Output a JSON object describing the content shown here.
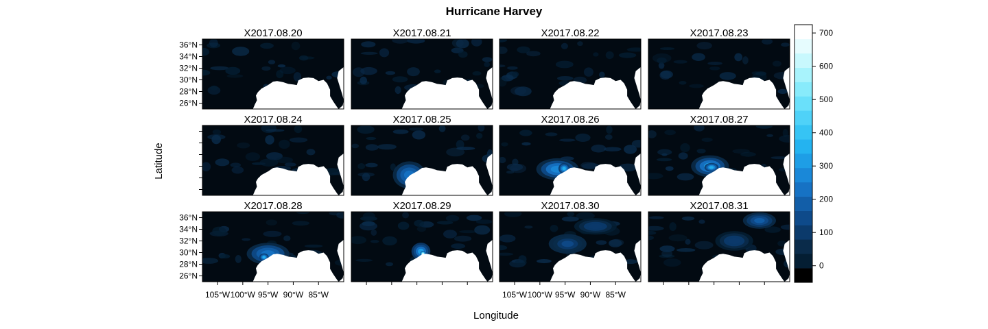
{
  "title": "Hurricane Harvey",
  "xlabel": "Longitude",
  "ylabel": "Latitude",
  "lat_ticks": [
    "36°N",
    "34°N",
    "32°N",
    "30°N",
    "28°N",
    "26°N"
  ],
  "lon_ticks": [
    "105°W",
    "100°W",
    "95°W",
    "90°W",
    "85°W"
  ],
  "panels": [
    {
      "label": "X2017.08.20",
      "storm": []
    },
    {
      "label": "X2017.08.21",
      "storm": []
    },
    {
      "label": "X2017.08.22",
      "storm": []
    },
    {
      "label": "X2017.08.23",
      "storm": []
    },
    {
      "label": "X2017.08.24",
      "storm": []
    },
    {
      "label": "X2017.08.25",
      "storm": [
        [
          -96.5,
          28.5,
          3.5,
          2.5,
          250
        ]
      ]
    },
    {
      "label": "X2017.08.26",
      "storm": [
        [
          -96.5,
          29.5,
          4.5,
          2.0,
          280
        ],
        [
          -95.2,
          29.6,
          1.2,
          1.0,
          360
        ]
      ]
    },
    {
      "label": "X2017.08.27",
      "storm": [
        [
          -95.8,
          30.0,
          4.0,
          2.0,
          300
        ],
        [
          -95.5,
          29.8,
          1.5,
          0.8,
          380
        ]
      ]
    },
    {
      "label": "X2017.08.28",
      "storm": [
        [
          -95.0,
          29.8,
          4.5,
          2.0,
          250
        ],
        [
          -95.8,
          29.2,
          1.0,
          0.7,
          360
        ]
      ]
    },
    {
      "label": "X2017.08.29",
      "storm": [
        [
          -94.2,
          30.2,
          2.0,
          1.6,
          330
        ],
        [
          -93.8,
          29.8,
          0.6,
          0.5,
          640
        ]
      ]
    },
    {
      "label": "X2017.08.30",
      "storm": [
        [
          -94.5,
          31.5,
          4.0,
          1.8,
          150
        ],
        [
          -89.0,
          34.5,
          4.5,
          1.5,
          110
        ]
      ]
    },
    {
      "label": "X2017.08.31",
      "storm": [
        [
          -86.0,
          35.5,
          3.5,
          1.5,
          200
        ],
        [
          -91.0,
          32.0,
          4.0,
          1.8,
          110
        ]
      ]
    }
  ],
  "chart_data": {
    "type": "heatmap",
    "title": "Hurricane Harvey",
    "xlabel": "Longitude",
    "ylabel": "Latitude",
    "xlim": [
      -108,
      -80
    ],
    "ylim": [
      25,
      37
    ],
    "colorbar": {
      "ticks": [
        0,
        100,
        200,
        300,
        400,
        500,
        600,
        700
      ],
      "range": [
        -50,
        725
      ],
      "steps": [
        "#000000",
        "#041e33",
        "#0a2b4a",
        "#0b3a6b",
        "#0e4a8a",
        "#125ea8",
        "#1672c4",
        "#1a88d8",
        "#1e9ee6",
        "#24b3f0",
        "#36c4f4",
        "#4fd2f8",
        "#6ae0fa",
        "#88ebfb",
        "#a8f3fc",
        "#c8f8fd",
        "#e6fcfe",
        "#ffffff"
      ]
    }
  }
}
